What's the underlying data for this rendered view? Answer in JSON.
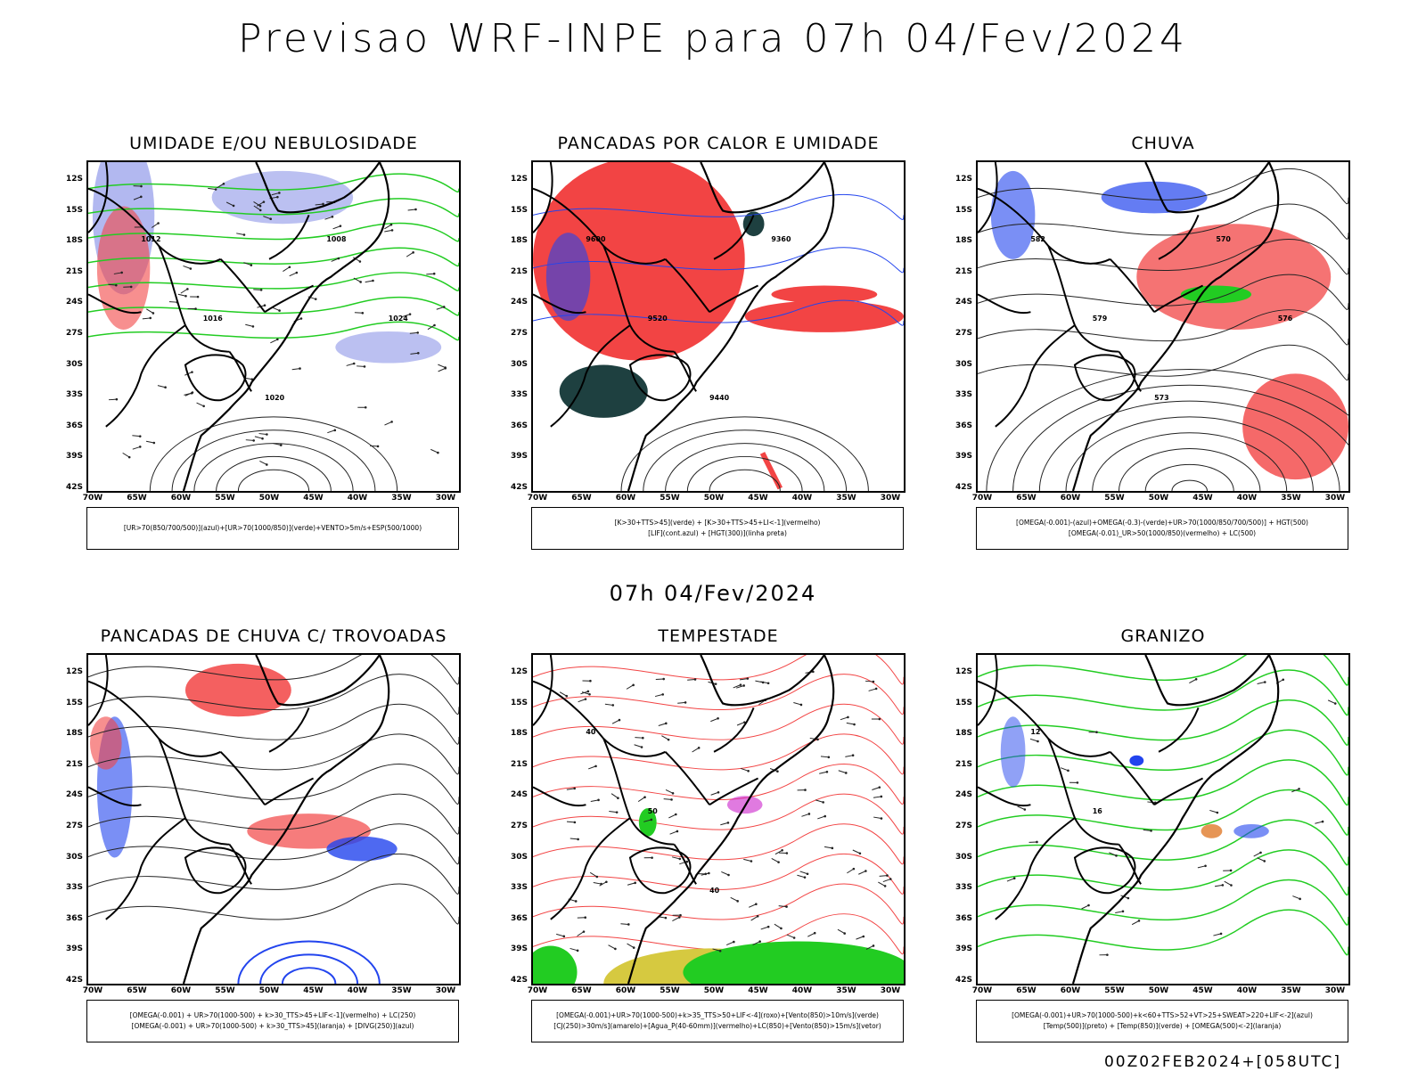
{
  "header": {
    "title": "Previsao WRF-INPE  para 07h 04/Fev/2024"
  },
  "middle": {
    "title": "07h 04/Fev/2024"
  },
  "footer": {
    "run_id": "00Z02FEB2024+[058UTC]"
  },
  "axes": {
    "lat_labels": [
      "12S",
      "15S",
      "18S",
      "21S",
      "24S",
      "27S",
      "30S",
      "33S",
      "36S",
      "39S",
      "42S"
    ],
    "lon_labels": [
      "70W",
      "65W",
      "60W",
      "55W",
      "50W",
      "45W",
      "40W",
      "35W",
      "30W"
    ]
  },
  "panels": [
    {
      "title": "UMIDADE E/OU NEBULOSIDADE",
      "legend": [
        "[UR>70(850/700/500)](azul)+[UR>70(1000/850)](verde)+VENTO>5m/s+ESP(500/1000)"
      ],
      "contour_labels": [
        "1012",
        "1016",
        "1020",
        "1008",
        "1024"
      ]
    },
    {
      "title": "PANCADAS POR CALOR E UMIDADE",
      "legend": [
        "[K>30+TTS>45](verde) + [K>30+TTS>45+LI<-1](vermelho)",
        "[LIF](cont.azul) + [HGT(300)](linha preta)"
      ],
      "contour_labels": [
        "9600",
        "9520",
        "9440",
        "9360"
      ]
    },
    {
      "title": "CHUVA",
      "legend": [
        "[OMEGA(-0.001)-(azul)+OMEGA(-0.3)-(verde)+UR>70(1000/850/700/500)] + HGT(500)",
        "[OMEGA(-0.01)_UR>50(1000/850)(vermelho) + LC(500)"
      ],
      "contour_labels": [
        "582",
        "579",
        "573",
        "570",
        "576"
      ]
    },
    {
      "title": "PANCADAS DE CHUVA C/ TROVOADAS",
      "legend": [
        "[OMEGA(-0.001) + UR>70(1000-500) + k>30_TTS>45+LIF<-1](vermelho) + LC(250)",
        "[OMEGA(-0.001) + UR>70(1000-500) + k>30_TTS>45](laranja) + [DIVG(250)](azul)"
      ],
      "contour_labels": []
    },
    {
      "title": "TEMPESTADE",
      "legend": [
        "[OMEGA(-0.001)+UR>70(1000-500)+k>35_TTS>50+LIF<-4](roxo)+[Vento(850)>10m/s](verde)",
        "[CJ(250)>30m/s](amarelo)+[Agua_P(40-60mm)](vermelho)+LC(850)+[Vento(850)>15m/s](vetor)"
      ],
      "contour_labels": [
        "40",
        "50",
        "40"
      ]
    },
    {
      "title": "GRANIZO",
      "legend": [
        "[OMEGA(-0.001)+UR>70(1000-500)+k<60+TTS>52+VT>25+SWEAT>220+LIF<-2](azul)",
        "[Temp(500)](preto) + [Temp(850)](verde) + [OMEGA(500)<-2](laranja)"
      ],
      "contour_labels": [
        "12",
        "16"
      ]
    }
  ],
  "colors": {
    "red": "#f24444",
    "green": "#22cc22",
    "blue": "#2244ee",
    "lavender": "#aab0ee",
    "darkteal": "#1e4040",
    "yellow": "#d6c940",
    "magenta": "#cc22cc",
    "orange": "#e07a2a"
  }
}
